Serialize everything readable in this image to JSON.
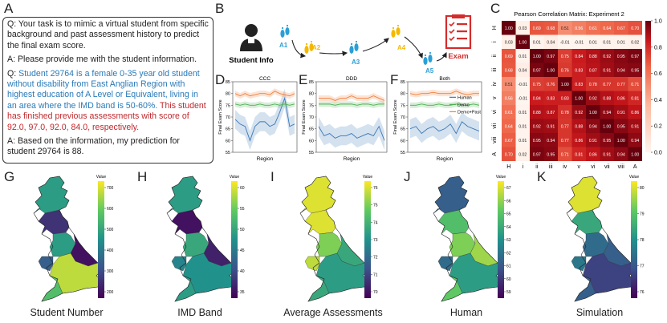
{
  "panel_letters": {
    "a": "A",
    "b": "B",
    "c": "C",
    "d": "D",
    "e": "E",
    "f": "F",
    "g": "G",
    "h": "H",
    "i": "I",
    "j": "J",
    "k": "K"
  },
  "qa": {
    "q1": "Q: Your task is to mimic a virtual student from specific background and past assessment history to predict the final exam score.",
    "a1": "A: Please provide me with the student information.",
    "q2_prefix": "Q: ",
    "q2_blue": "Student 29764 is a female 0-35 year old student without disability from East Anglian Region with highest education of A Level or Equivalent, living in an area where the IMD band is 50-60%.",
    "q2_red": "This student has finished previous assessments with score of 92.0, 97.0, 92.0, 84.0, respectively.",
    "a2": "A: Based on the information, my prediction for student 29764 is 88."
  },
  "flow": {
    "student_info": "Student Info",
    "steps": [
      "A1",
      "A2",
      "A3",
      "A4",
      "A5"
    ],
    "exam": "Exam",
    "colors": {
      "blue": "#2a9fd8",
      "yellow": "#f5b800",
      "red": "#d62b2b"
    }
  },
  "heatmap": {
    "title": "Pearson Correlation Matrix: Experiment 2",
    "labels": [
      "H",
      "i",
      "ii",
      "iii",
      "iv",
      "v",
      "vi",
      "vii",
      "viii",
      "A"
    ],
    "matrix": [
      [
        1.0,
        0.03,
        0.69,
        0.68,
        0.51,
        0.56,
        0.61,
        0.64,
        0.67,
        0.7
      ],
      [
        0.03,
        1.0,
        0.01,
        0.04,
        -0.01,
        -0.01,
        0.01,
        0.01,
        0.01,
        0.02
      ],
      [
        0.69,
        0.01,
        1.0,
        0.97,
        0.75,
        0.84,
        0.88,
        0.92,
        0.95,
        0.97
      ],
      [
        0.68,
        0.04,
        0.97,
        1.0,
        0.76,
        0.83,
        0.87,
        0.91,
        0.94,
        0.95
      ],
      [
        0.51,
        -0.01,
        0.75,
        0.76,
        1.0,
        0.83,
        0.78,
        0.77,
        0.77,
        0.71
      ],
      [
        0.56,
        -0.01,
        0.84,
        0.83,
        0.83,
        1.0,
        0.92,
        0.88,
        0.86,
        0.81
      ],
      [
        0.61,
        0.01,
        0.88,
        0.87,
        0.78,
        0.92,
        1.0,
        0.94,
        0.91,
        0.86
      ],
      [
        0.64,
        0.01,
        0.92,
        0.91,
        0.77,
        0.88,
        0.94,
        1.0,
        0.95,
        0.91
      ],
      [
        0.67,
        0.01,
        0.95,
        0.94,
        0.77,
        0.86,
        0.91,
        0.95,
        1.0,
        0.94
      ],
      [
        0.7,
        0.02,
        0.97,
        0.95,
        0.71,
        0.81,
        0.86,
        0.91,
        0.94,
        1.0
      ]
    ],
    "scale_ticks": [
      "1.0",
      "0.8",
      "0.6",
      "0.4",
      "0.2",
      "0.0"
    ]
  },
  "chart_data": [
    {
      "type": "line",
      "title": "CCC",
      "xlabel": "Region",
      "ylabel": "Final Exam Score",
      "ylim": [
        55,
        85
      ],
      "yticks": [
        55,
        60,
        65,
        70,
        75,
        80,
        85
      ],
      "series": [
        {
          "name": "Human",
          "color": "#3a78b8",
          "values": [
            69,
            67,
            66,
            60,
            66,
            68,
            68,
            66,
            67,
            72,
            78,
            66,
            67
          ]
        },
        {
          "name": "Demo",
          "color": "#4caf50",
          "values": [
            75.5,
            75,
            75.5,
            75,
            75,
            75.5,
            75,
            75,
            75.5,
            75,
            75.5,
            75,
            75.5
          ]
        },
        {
          "name": "Demo+Past",
          "color": "#f07f3c",
          "values": [
            80,
            79,
            80,
            79,
            79.5,
            80,
            80,
            79.5,
            81,
            80,
            79.5,
            79,
            80
          ]
        }
      ]
    },
    {
      "type": "line",
      "title": "DDD",
      "xlabel": "Region",
      "ylabel": "Final Exam Score",
      "ylim": [
        55,
        85
      ],
      "yticks": [
        55,
        60,
        65,
        70,
        75,
        80,
        85
      ],
      "series": [
        {
          "name": "Human",
          "color": "#3a78b8",
          "values": [
            66,
            62,
            63,
            61,
            62,
            62,
            63,
            61,
            62,
            63,
            62,
            66,
            60
          ]
        },
        {
          "name": "Demo",
          "color": "#4caf50",
          "values": [
            75.5,
            75.5,
            75.5,
            75,
            75.5,
            75.5,
            75.5,
            75,
            75.5,
            75.5,
            75,
            75.5,
            75.5
          ]
        },
        {
          "name": "Demo+Past",
          "color": "#f07f3c",
          "values": [
            78,
            78,
            78,
            77,
            78,
            78,
            79,
            78,
            78,
            78,
            79,
            78,
            77
          ]
        }
      ]
    },
    {
      "type": "line",
      "title": "Both",
      "xlabel": "Region",
      "ylabel": "Final Exam Score",
      "ylim": [
        55,
        85
      ],
      "yticks": [
        55,
        60,
        65,
        70,
        75,
        80,
        85
      ],
      "legend": [
        "Human",
        "Demo",
        "Demo+Past"
      ],
      "series": [
        {
          "name": "Human",
          "color": "#3a78b8",
          "values": [
            65,
            66,
            63,
            65,
            66,
            64,
            65,
            67,
            63,
            68,
            66,
            65,
            64
          ]
        },
        {
          "name": "Demo",
          "color": "#4caf50",
          "values": [
            75,
            75,
            75.5,
            75,
            75,
            75.5,
            75,
            75,
            75.5,
            75,
            75,
            75.5,
            75
          ]
        },
        {
          "name": "Demo+Past",
          "color": "#f07f3c",
          "values": [
            80,
            79.5,
            80,
            80,
            80.5,
            80,
            80,
            80,
            81,
            80,
            79.5,
            80,
            80
          ]
        }
      ]
    }
  ],
  "maps": [
    {
      "label": "Student Number",
      "colorbar_label": "Value",
      "ticks": [
        "700",
        "600",
        "500",
        "400",
        "300",
        "200"
      ]
    },
    {
      "label": "IMD Band",
      "colorbar_label": "Value",
      "ticks": [
        "60",
        "55",
        "50",
        "45",
        "40",
        "35"
      ]
    },
    {
      "label": "Average Assessments",
      "colorbar_label": "Value",
      "ticks": [
        "76",
        "75",
        "74",
        "73",
        "72",
        "71",
        "70"
      ]
    },
    {
      "label": "Human",
      "colorbar_label": "Value",
      "ticks": [
        "67",
        "66",
        "65",
        "64",
        "63",
        "62",
        "61",
        "60",
        "59"
      ]
    },
    {
      "label": "Simulation",
      "colorbar_label": "Value",
      "ticks": [
        "80",
        "79",
        "78",
        "77",
        "76"
      ]
    }
  ]
}
